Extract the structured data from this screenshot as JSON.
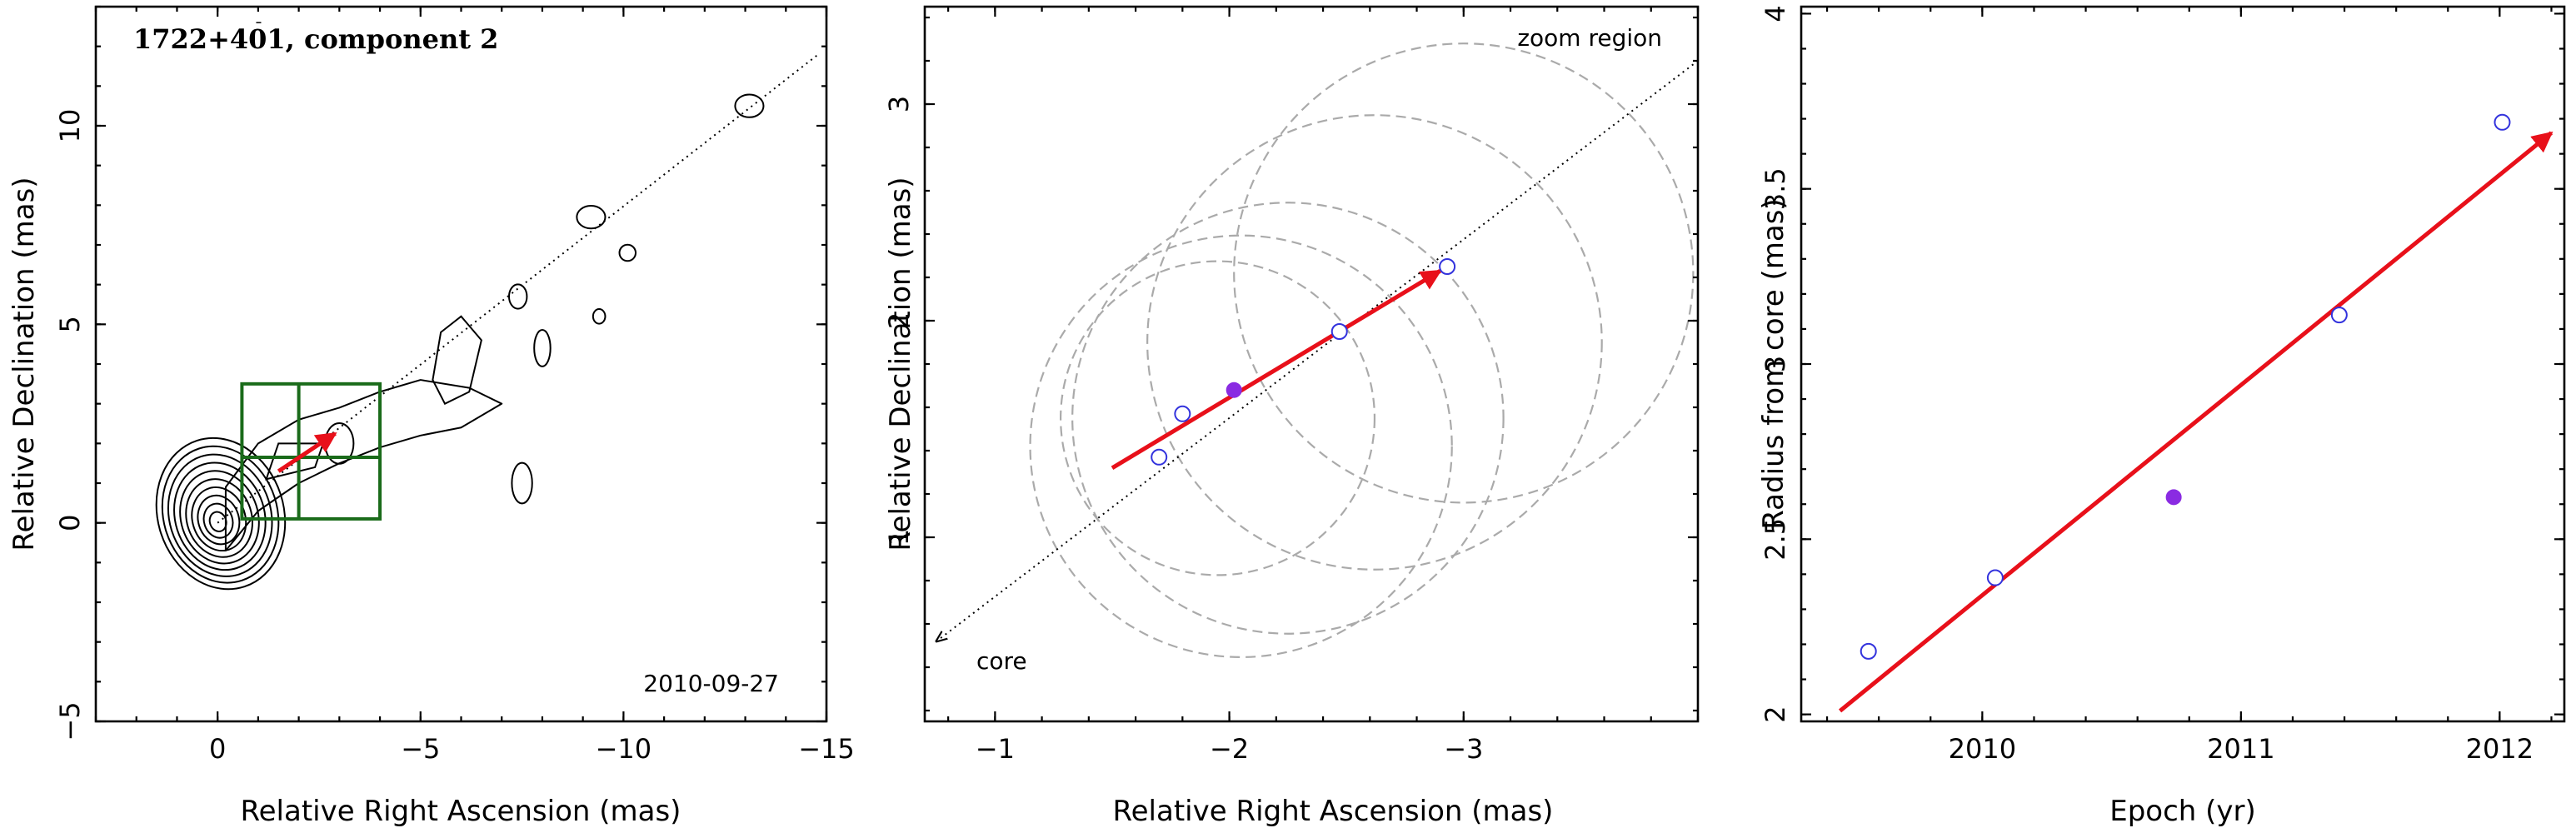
{
  "chart_data": [
    {
      "type": "contour",
      "title": "1722+401, component 2",
      "date_label": "2010-09-27",
      "xlabel": "Relative Right Ascension (mas)",
      "ylabel": "Relative Declination (mas)",
      "xlim": [
        3,
        -15
      ],
      "ylim": [
        -5,
        13
      ],
      "xticks": [
        0,
        -5,
        -10,
        -15
      ],
      "yticks": [
        -5,
        0,
        5,
        10
      ],
      "xtick_labels": [
        "0",
        "−5",
        "−10",
        "−15"
      ],
      "ytick_labels": [
        "−5",
        "0",
        "5",
        "10"
      ],
      "jet_axis_line": {
        "from": [
          0,
          0
        ],
        "to": [
          -14.8,
          11.8
        ]
      },
      "zoom_box": {
        "x": [
          -0.6,
          -4.0
        ],
        "y": [
          0.1,
          3.5
        ],
        "grid_x": -2.0,
        "grid_y": 1.65
      },
      "motion_arrow": {
        "from": [
          -1.5,
          1.3
        ],
        "to": [
          -2.9,
          2.25
        ]
      },
      "colors": {
        "contour": "#000000",
        "box": "#1a6b1a",
        "arrow": "#e8101a"
      }
    },
    {
      "type": "scatter",
      "annotations": {
        "zoom": "zoom region",
        "core": "core"
      },
      "xlabel": "Relative Right Ascension (mas)",
      "ylabel": "Relative Declination (mas)",
      "xlim": [
        -0.7,
        -4.0
      ],
      "ylim": [
        0.15,
        3.45
      ],
      "xticks": [
        -1,
        -2,
        -3
      ],
      "yticks": [
        1,
        2,
        3
      ],
      "xtick_labels": [
        "−1",
        "−2",
        "−3"
      ],
      "ytick_labels": [
        "1",
        "2",
        "3"
      ],
      "points_open": [
        [
          -1.7,
          1.37
        ],
        [
          -1.8,
          1.57
        ],
        [
          -2.47,
          1.95
        ],
        [
          -2.93,
          2.25
        ]
      ],
      "points_filled": [
        [
          -2.02,
          1.68
        ]
      ],
      "circles": [
        {
          "cx": -2.25,
          "cy": 1.55,
          "r": 0.92
        },
        {
          "cx": -2.05,
          "cy": 1.42,
          "r": 0.9
        },
        {
          "cx": -1.95,
          "cy": 1.55,
          "r": 0.67
        },
        {
          "cx": -2.62,
          "cy": 1.9,
          "r": 0.97
        },
        {
          "cx": -3.0,
          "cy": 2.22,
          "r": 0.98
        }
      ],
      "jet_axis_line": {
        "from": [
          -0.75,
          0.52
        ],
        "to": [
          -4.0,
          3.2
        ]
      },
      "motion_arrow": {
        "from": [
          -1.5,
          1.32
        ],
        "to": [
          -2.9,
          2.23
        ]
      },
      "colors": {
        "open": "#3333dd",
        "filled": "#8a2be2",
        "circles": "#aaaaaa",
        "arrow": "#e8101a"
      }
    },
    {
      "type": "scatter",
      "xlabel": "Epoch (yr)",
      "ylabel": "Radius from core (mas)",
      "xlim": [
        2009.3,
        2012.25
      ],
      "ylim": [
        1.98,
        4.02
      ],
      "xticks": [
        2010,
        2011,
        2012
      ],
      "yticks": [
        2,
        2.5,
        3,
        3.5,
        4
      ],
      "xtick_labels": [
        "2010",
        "2011",
        "2012"
      ],
      "ytick_labels": [
        "2",
        "2.5",
        "3",
        "3.5",
        "4"
      ],
      "points_open": [
        [
          2009.56,
          2.18
        ],
        [
          2010.05,
          2.39
        ],
        [
          2011.38,
          3.14
        ],
        [
          2012.01,
          3.69
        ]
      ],
      "points_filled": [
        [
          2010.74,
          2.62
        ]
      ],
      "fit_arrow": {
        "from": [
          2009.45,
          2.01
        ],
        "to": [
          2012.2,
          3.66
        ]
      },
      "colors": {
        "open": "#3333dd",
        "filled": "#8a2be2",
        "arrow": "#e8101a"
      }
    }
  ]
}
